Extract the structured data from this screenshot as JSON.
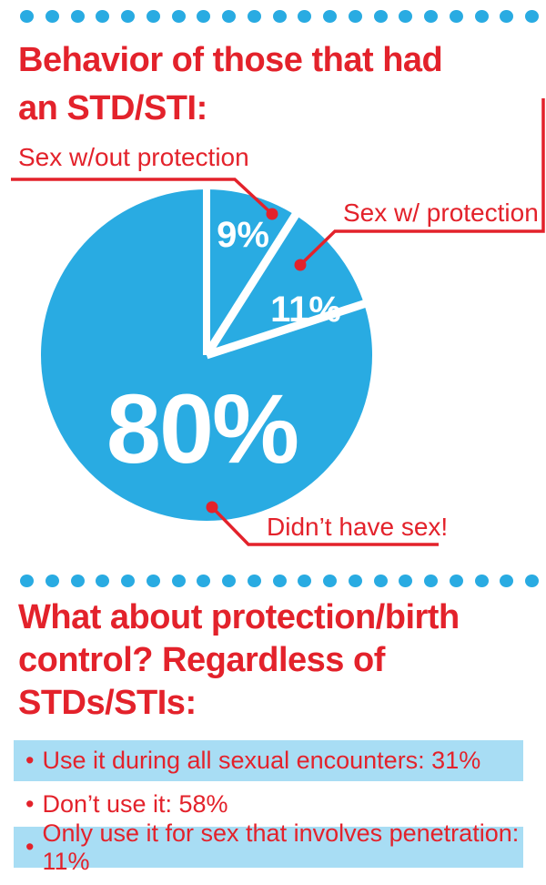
{
  "ui": {
    "accent_blue": "#29abe2",
    "row_highlight_blue": "#a8ddf4",
    "accent_red": "#e3222b",
    "slice_text_white": "#ffffff",
    "dot_count_top": 21,
    "dot_count_middle": 21,
    "bullet": "•"
  },
  "section1": {
    "heading_lines": [
      "Behavior of those that had",
      "an STD/STI:"
    ]
  },
  "chart_data": {
    "type": "pie",
    "title": "Behavior of those that had an STD/STI:",
    "start_angle_deg": 0,
    "direction": "clockwise",
    "slices": [
      {
        "label": "Sex w/out protection",
        "value_pct": 9,
        "display": "9%"
      },
      {
        "label": "Sex w/ protection",
        "value_pct": 11,
        "display": "11%"
      },
      {
        "label": "Didn’t have sex!",
        "value_pct": 80,
        "display": "80%"
      }
    ],
    "colors": {
      "slice_fill": "#29abe2",
      "divider": "#ffffff",
      "callout": "#e3222b"
    },
    "legend_position": "callouts-with-leader-lines"
  },
  "section2": {
    "heading_lines": [
      "What about protection/birth",
      "control? Regardless of",
      "STDs/STIs:"
    ],
    "items": [
      {
        "text": "Use it during all sexual encounters: 31%",
        "highlighted": true
      },
      {
        "text": "Don’t use it: 58%",
        "highlighted": false
      },
      {
        "text": "Only use it for sex that involves penetration: 11%",
        "highlighted": true
      }
    ]
  }
}
